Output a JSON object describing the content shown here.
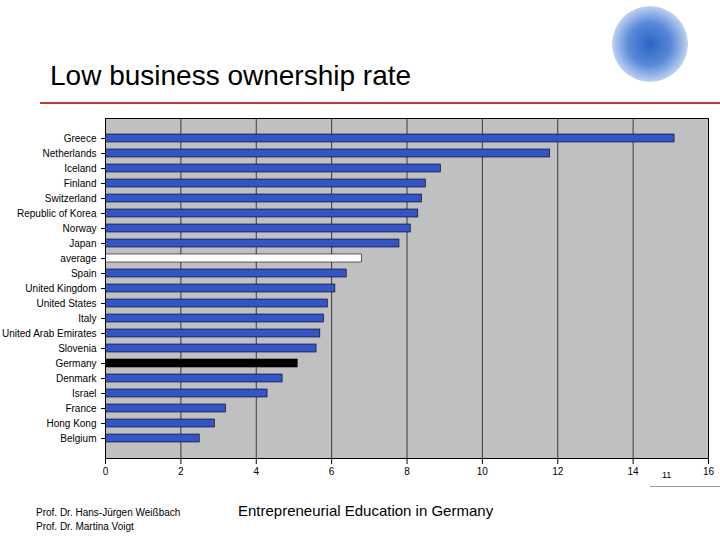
{
  "chart_data": {
    "type": "bar",
    "title": "Low business ownership rate",
    "orientation": "horizontal",
    "categories": [
      "Greece",
      "Netherlands",
      "Iceland",
      "Finland",
      "Switzerland",
      "Republic of Korea",
      "Norway",
      "Japan",
      "average",
      "Spain",
      "United Kingdom",
      "United States",
      "Italy",
      "United Arab Emirates",
      "Slovenia",
      "Germany",
      "Denmark",
      "Israel",
      "France",
      "Hong Kong",
      "Belgium"
    ],
    "values": [
      15.1,
      11.8,
      8.9,
      8.5,
      8.4,
      8.3,
      8.1,
      7.8,
      6.8,
      6.4,
      6.1,
      5.9,
      5.8,
      5.7,
      5.6,
      5.1,
      4.7,
      4.3,
      3.2,
      2.9,
      2.5
    ],
    "colors": [
      "#3355cc",
      "#3355cc",
      "#3355cc",
      "#3355cc",
      "#3355cc",
      "#3355cc",
      "#3355cc",
      "#3355cc",
      "#ffffff",
      "#3355cc",
      "#3355cc",
      "#3355cc",
      "#3355cc",
      "#3355cc",
      "#3355cc",
      "#000000",
      "#3355cc",
      "#3355cc",
      "#3355cc",
      "#3355cc",
      "#3355cc"
    ],
    "xlim": [
      0,
      16
    ],
    "xticks": [
      0,
      2,
      4,
      6,
      8,
      10,
      12,
      14,
      16
    ],
    "grid": true
  },
  "footer": {
    "authors": [
      "Prof. Dr. Hans-Jürgen Weißbach",
      "Prof. Dr. Martina Voigt"
    ],
    "center": "Entrepreneurial Education in Germany",
    "page": 11
  }
}
